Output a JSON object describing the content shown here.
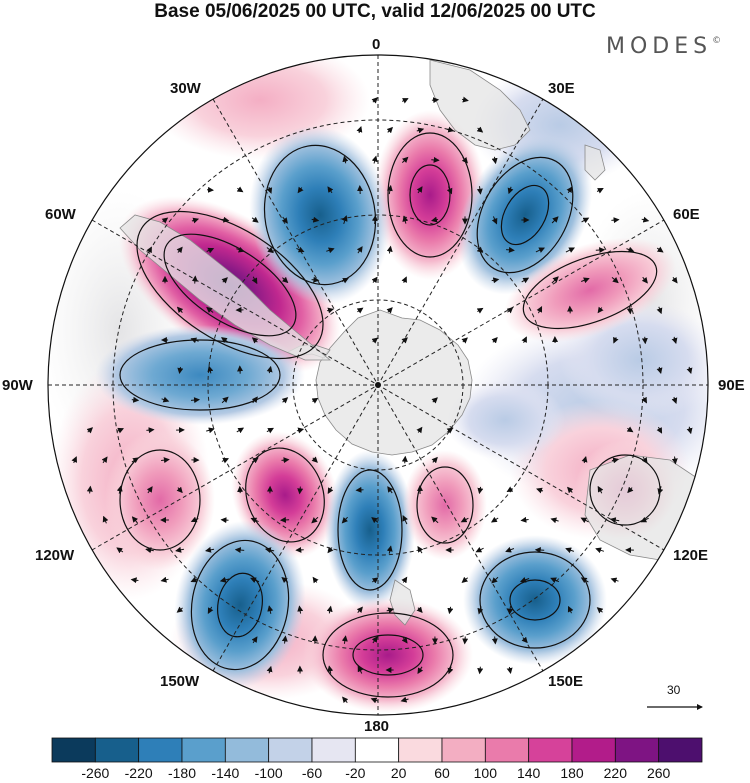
{
  "title": "Base 05/06/2025 00 UTC, valid 12/06/2025 00 UTC",
  "brand": {
    "name": "MODES",
    "mark": "©"
  },
  "projection": "south-polar-stereographic",
  "longitude_labels": {
    "lon_0": "0",
    "lon_30e": "30E",
    "lon_60e": "60E",
    "lon_90e": "90E",
    "lon_120e": "120E",
    "lon_150e": "150E",
    "lon_180": "180",
    "lon_150w": "150W",
    "lon_120w": "120W",
    "lon_90w": "90W",
    "lon_60w": "60W",
    "lon_30w": "30W"
  },
  "reference_vector": {
    "value": "30"
  },
  "colorbar": {
    "ticks": [
      "-260",
      "-220",
      "-180",
      "-140",
      "-100",
      "-60",
      "-20",
      "20",
      "60",
      "100",
      "140",
      "180",
      "220",
      "260"
    ],
    "colors": [
      "#0b3a5c",
      "#175f8c",
      "#2e7fb8",
      "#5a9fcc",
      "#93bbdb",
      "#c3d2e8",
      "#e6e6f2",
      "#ffffff",
      "#fadadf",
      "#f3aec2",
      "#ea7bab",
      "#d6429a",
      "#b21c8a",
      "#7e1483",
      "#4d0f6e"
    ]
  },
  "colors": {
    "land": "#e5e5e5",
    "coast": "#8a8a8a",
    "grid": "#222222"
  }
}
